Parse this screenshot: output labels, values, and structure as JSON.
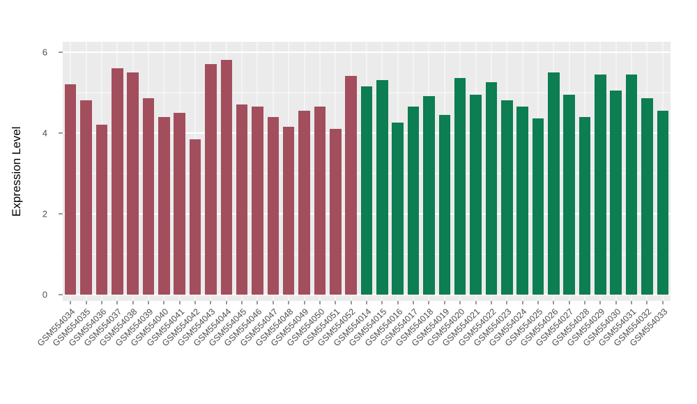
{
  "chart_data": {
    "type": "bar",
    "title": "",
    "xlabel": "",
    "ylabel": "Expression Level",
    "ylim": [
      0,
      6
    ],
    "yticks": [
      0,
      2,
      4,
      6
    ],
    "minor_gridlines": [
      1,
      3,
      5
    ],
    "grid": "on",
    "legend_position": "none",
    "colors": {
      "red_group": "#A34E5D",
      "green_group": "#0D7D52",
      "panel_background": "#EBEBEB",
      "grid": "#FFFFFF",
      "axis_text": "#4D4D4D"
    },
    "bars": [
      {
        "label": "GSM554034",
        "value": 5.2,
        "group": "red_group"
      },
      {
        "label": "GSM554035",
        "value": 4.8,
        "group": "red_group"
      },
      {
        "label": "GSM554036",
        "value": 4.2,
        "group": "red_group"
      },
      {
        "label": "GSM554037",
        "value": 5.6,
        "group": "red_group"
      },
      {
        "label": "GSM554038",
        "value": 5.5,
        "group": "red_group"
      },
      {
        "label": "GSM554039",
        "value": 4.85,
        "group": "red_group"
      },
      {
        "label": "GSM554040",
        "value": 4.4,
        "group": "red_group"
      },
      {
        "label": "GSM554041",
        "value": 4.5,
        "group": "red_group"
      },
      {
        "label": "GSM554042",
        "value": 3.85,
        "group": "red_group"
      },
      {
        "label": "GSM554043",
        "value": 5.7,
        "group": "red_group"
      },
      {
        "label": "GSM554044",
        "value": 5.8,
        "group": "red_group"
      },
      {
        "label": "GSM554045",
        "value": 4.7,
        "group": "red_group"
      },
      {
        "label": "GSM554046",
        "value": 4.65,
        "group": "red_group"
      },
      {
        "label": "GSM554047",
        "value": 4.4,
        "group": "red_group"
      },
      {
        "label": "GSM554048",
        "value": 4.15,
        "group": "red_group"
      },
      {
        "label": "GSM554049",
        "value": 4.55,
        "group": "red_group"
      },
      {
        "label": "GSM554050",
        "value": 4.65,
        "group": "red_group"
      },
      {
        "label": "GSM554051",
        "value": 4.1,
        "group": "red_group"
      },
      {
        "label": "GSM554052",
        "value": 5.4,
        "group": "red_group"
      },
      {
        "label": "GSM554014",
        "value": 5.15,
        "group": "green_group"
      },
      {
        "label": "GSM554015",
        "value": 5.3,
        "group": "green_group"
      },
      {
        "label": "GSM554016",
        "value": 4.25,
        "group": "green_group"
      },
      {
        "label": "GSM554017",
        "value": 4.65,
        "group": "green_group"
      },
      {
        "label": "GSM554018",
        "value": 4.9,
        "group": "green_group"
      },
      {
        "label": "GSM554019",
        "value": 4.45,
        "group": "green_group"
      },
      {
        "label": "GSM554020",
        "value": 5.35,
        "group": "green_group"
      },
      {
        "label": "GSM554021",
        "value": 4.95,
        "group": "green_group"
      },
      {
        "label": "GSM554022",
        "value": 5.25,
        "group": "green_group"
      },
      {
        "label": "GSM554023",
        "value": 4.8,
        "group": "green_group"
      },
      {
        "label": "GSM554024",
        "value": 4.65,
        "group": "green_group"
      },
      {
        "label": "GSM554025",
        "value": 4.35,
        "group": "green_group"
      },
      {
        "label": "GSM554026",
        "value": 5.5,
        "group": "green_group"
      },
      {
        "label": "GSM554027",
        "value": 4.95,
        "group": "green_group"
      },
      {
        "label": "GSM554028",
        "value": 4.4,
        "group": "green_group"
      },
      {
        "label": "GSM554029",
        "value": 5.45,
        "group": "green_group"
      },
      {
        "label": "GSM554030",
        "value": 5.05,
        "group": "green_group"
      },
      {
        "label": "GSM554031",
        "value": 5.45,
        "group": "green_group"
      },
      {
        "label": "GSM554032",
        "value": 4.85,
        "group": "green_group"
      },
      {
        "label": "GSM554033",
        "value": 4.55,
        "group": "green_group"
      }
    ]
  }
}
